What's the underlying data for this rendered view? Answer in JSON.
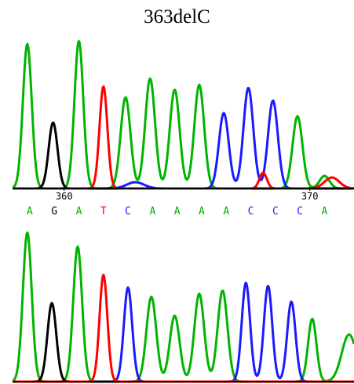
{
  "title": "363delC",
  "colors": {
    "A": "#00b400",
    "C": "#1a1aff",
    "G": "#000000",
    "T": "#ff0000"
  },
  "chart_data": {
    "type": "line",
    "title": "363delC",
    "xlim": [
      357.9,
      371.8
    ],
    "ticks": [
      {
        "value": 360,
        "label": "360"
      },
      {
        "value": 370,
        "label": "370"
      }
    ],
    "bases": [
      "A",
      "G",
      "A",
      "T",
      "C",
      "A",
      "A",
      "A",
      "A",
      "C",
      "C",
      "C",
      "A"
    ],
    "base_positions": [
      358.6,
      359.6,
      360.6,
      361.6,
      362.6,
      363.6,
      364.6,
      365.6,
      366.6,
      367.6,
      368.6,
      369.6,
      370.6
    ],
    "top": {
      "name": "",
      "peaks": [
        {
          "base": "A",
          "x": 358.5,
          "h": 0.92,
          "w": 0.18
        },
        {
          "base": "G",
          "x": 359.55,
          "h": 0.42,
          "w": 0.18
        },
        {
          "base": "A",
          "x": 360.6,
          "h": 0.94,
          "w": 0.18
        },
        {
          "base": "T",
          "x": 361.6,
          "h": 0.65,
          "w": 0.16
        },
        {
          "base": "A",
          "x": 362.5,
          "h": 0.58,
          "w": 0.2
        },
        {
          "base": "A",
          "x": 363.5,
          "h": 0.7,
          "w": 0.2
        },
        {
          "base": "A",
          "x": 364.5,
          "h": 0.63,
          "w": 0.2
        },
        {
          "base": "A",
          "x": 365.5,
          "h": 0.66,
          "w": 0.2
        },
        {
          "base": "C",
          "x": 366.5,
          "h": 0.48,
          "w": 0.2
        },
        {
          "base": "C",
          "x": 367.5,
          "h": 0.64,
          "w": 0.2
        },
        {
          "base": "C",
          "x": 368.5,
          "h": 0.56,
          "w": 0.2
        },
        {
          "base": "A",
          "x": 369.5,
          "h": 0.46,
          "w": 0.2
        },
        {
          "base": "A",
          "x": 370.6,
          "h": 0.08,
          "w": 0.2
        },
        {
          "base": "C",
          "x": 362.9,
          "h": 0.04,
          "w": 0.35
        },
        {
          "base": "T",
          "x": 368.1,
          "h": 0.1,
          "w": 0.15
        },
        {
          "base": "T",
          "x": 370.9,
          "h": 0.07,
          "w": 0.3
        }
      ]
    },
    "bottom": {
      "name": "",
      "peaks": [
        {
          "base": "A",
          "x": 358.5,
          "h": 0.95,
          "w": 0.18
        },
        {
          "base": "G",
          "x": 359.5,
          "h": 0.5,
          "w": 0.18
        },
        {
          "base": "A",
          "x": 360.55,
          "h": 0.86,
          "w": 0.18
        },
        {
          "base": "T",
          "x": 361.6,
          "h": 0.68,
          "w": 0.16
        },
        {
          "base": "C",
          "x": 362.6,
          "h": 0.6,
          "w": 0.17
        },
        {
          "base": "A",
          "x": 363.55,
          "h": 0.54,
          "w": 0.2
        },
        {
          "base": "A",
          "x": 364.5,
          "h": 0.42,
          "w": 0.2
        },
        {
          "base": "A",
          "x": 365.5,
          "h": 0.56,
          "w": 0.2
        },
        {
          "base": "A",
          "x": 366.45,
          "h": 0.58,
          "w": 0.2
        },
        {
          "base": "C",
          "x": 367.4,
          "h": 0.63,
          "w": 0.17
        },
        {
          "base": "C",
          "x": 368.3,
          "h": 0.61,
          "w": 0.17
        },
        {
          "base": "C",
          "x": 369.25,
          "h": 0.51,
          "w": 0.17
        },
        {
          "base": "A",
          "x": 370.1,
          "h": 0.4,
          "w": 0.17
        },
        {
          "base": "A",
          "x": 371.6,
          "h": 0.3,
          "w": 0.3
        }
      ]
    }
  }
}
